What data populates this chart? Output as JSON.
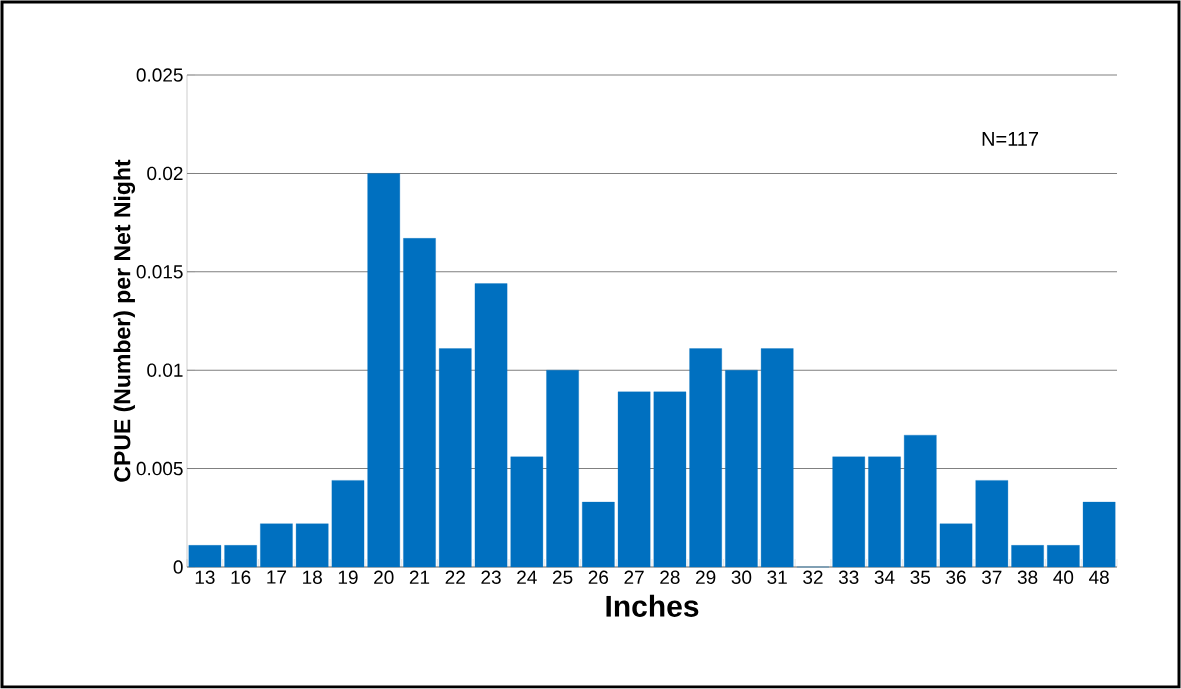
{
  "chart_data": {
    "type": "bar",
    "xlabel": "Inches",
    "ylabel": "CPUE (Number) per Net Night",
    "categories": [
      "13",
      "16",
      "17",
      "18",
      "19",
      "20",
      "21",
      "22",
      "23",
      "24",
      "25",
      "26",
      "27",
      "28",
      "29",
      "30",
      "31",
      "32",
      "33",
      "34",
      "35",
      "36",
      "37",
      "38",
      "40",
      "48"
    ],
    "values": [
      0.0011,
      0.0011,
      0.0022,
      0.0022,
      0.0044,
      0.02,
      0.0167,
      0.0111,
      0.0144,
      0.0056,
      0.01,
      0.0033,
      0.0089,
      0.0089,
      0.0111,
      0.01,
      0.0111,
      0,
      0.0056,
      0.0056,
      0.0067,
      0.0022,
      0.0044,
      0.0011,
      0.0011,
      0.0033
    ],
    "color": "#0070c0",
    "ylim": [
      0,
      0.025
    ],
    "yticks": [
      0,
      0.005,
      0.01,
      0.015,
      0.02,
      0.025
    ],
    "grid": "y",
    "annotations": [
      "N=117"
    ]
  }
}
